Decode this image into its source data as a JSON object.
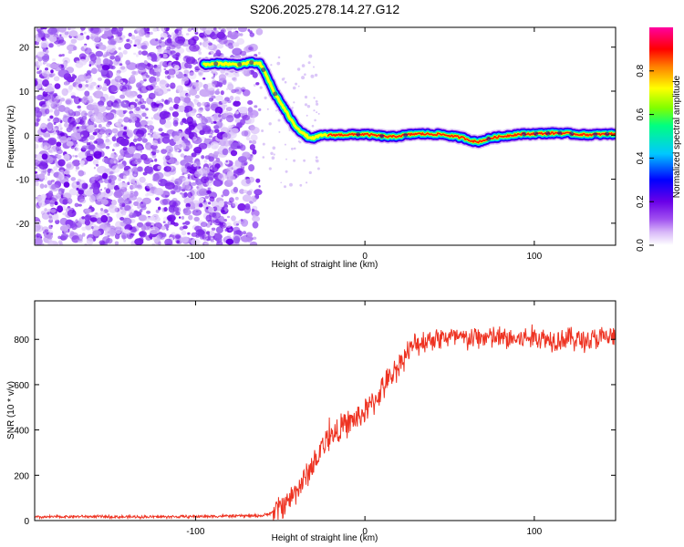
{
  "title": "S206.2025.278.14.27.G12",
  "chart_data": [
    {
      "type": "heatmap",
      "name": "spectrogram",
      "xlabel": "Height of straight line (km)",
      "ylabel": "Frequency (Hz)",
      "xlim": [
        -195,
        148
      ],
      "ylim": [
        -25,
        24.5
      ],
      "xticks": [
        -100,
        0,
        100
      ],
      "yticks": [
        -20,
        -10,
        0,
        10,
        20
      ],
      "colorbar": {
        "label": "Normalized spectral amplitude",
        "range": [
          0,
          1
        ],
        "ticks": [
          "0.0",
          "0.2",
          "0.4",
          "0.6",
          "0.8"
        ],
        "colors": [
          "#ffffff",
          "#d8b8f8",
          "#a050f0",
          "#6a00e8",
          "#0000ff",
          "#00c8ff",
          "#00ff80",
          "#80ff00",
          "#ffff00",
          "#ff8000",
          "#ff0000",
          "#ff00a0"
        ]
      },
      "ridge": [
        {
          "x": -95,
          "y": 16
        },
        {
          "x": -85,
          "y": 16.3
        },
        {
          "x": -75,
          "y": 16
        },
        {
          "x": -67,
          "y": 16.5
        },
        {
          "x": -62,
          "y": 16.2
        },
        {
          "x": -58,
          "y": 13.5
        },
        {
          "x": -54,
          "y": 10
        },
        {
          "x": -50,
          "y": 7.5
        },
        {
          "x": -46,
          "y": 5
        },
        {
          "x": -42,
          "y": 2.5
        },
        {
          "x": -37,
          "y": 0.5
        },
        {
          "x": -32,
          "y": -0.8
        },
        {
          "x": -25,
          "y": 0
        },
        {
          "x": 0,
          "y": 0.2
        },
        {
          "x": 15,
          "y": -0.4
        },
        {
          "x": 30,
          "y": 0.3
        },
        {
          "x": 45,
          "y": 0.2
        },
        {
          "x": 58,
          "y": -0.6
        },
        {
          "x": 66,
          "y": -1.6
        },
        {
          "x": 75,
          "y": -0.6
        },
        {
          "x": 90,
          "y": 0.2
        },
        {
          "x": 115,
          "y": 0.5
        },
        {
          "x": 130,
          "y": 0.1
        },
        {
          "x": 148,
          "y": 0.3
        }
      ]
    },
    {
      "type": "line",
      "name": "snr",
      "xlabel": "Height of straight line (km)",
      "ylabel": "SNR (10 * v/v)",
      "xlim": [
        -195,
        148
      ],
      "ylim": [
        0,
        970
      ],
      "xticks": [
        -100,
        0,
        100
      ],
      "yticks": [
        0,
        200,
        400,
        600,
        800
      ],
      "color": "#ee3322",
      "series": [
        {
          "name": "SNR",
          "x": [
            -195,
            -170,
            -140,
            -110,
            -80,
            -60,
            -55,
            -50,
            -45,
            -40,
            -35,
            -30,
            -26,
            -22,
            -18,
            -14,
            -10,
            -5,
            0,
            5,
            10,
            15,
            20,
            25,
            30,
            40,
            50,
            60,
            70,
            80,
            90,
            100,
            110,
            120,
            130,
            140,
            148
          ],
          "y": [
            15,
            18,
            16,
            17,
            20,
            22,
            35,
            60,
            90,
            140,
            190,
            260,
            320,
            360,
            380,
            410,
            430,
            450,
            480,
            520,
            580,
            630,
            690,
            740,
            780,
            805,
            810,
            800,
            810,
            805,
            800,
            810,
            800,
            805,
            795,
            805,
            810
          ],
          "noise_amplitude": 65
        }
      ]
    }
  ]
}
